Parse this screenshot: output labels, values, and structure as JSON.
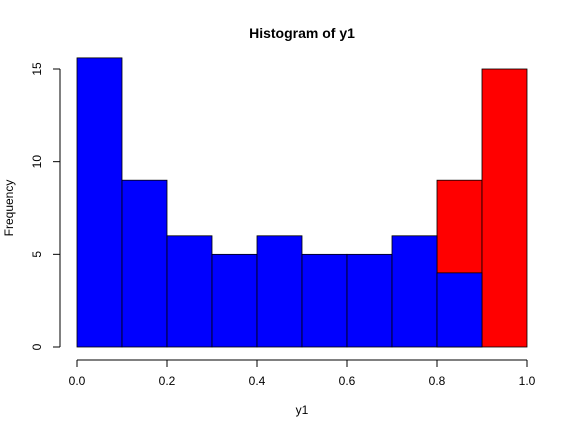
{
  "chart_data": {
    "type": "bar",
    "title": "Histogram of y1",
    "xlabel": "y1",
    "ylabel": "Frequency",
    "xlim": [
      0,
      1
    ],
    "ylim": [
      0,
      15
    ],
    "x_ticks": [
      "0.0",
      "0.2",
      "0.4",
      "0.6",
      "0.8",
      "1.0"
    ],
    "y_ticks": [
      "0",
      "5",
      "10",
      "15"
    ],
    "grid": false,
    "bin_edges": [
      0,
      0.1,
      0.2,
      0.3,
      0.4,
      0.5,
      0.6,
      0.7,
      0.8,
      0.9,
      1.0
    ],
    "layers": [
      {
        "color": "#ff0000",
        "values": [
          0,
          0,
          0,
          0,
          0,
          0,
          0,
          0,
          9,
          15
        ]
      },
      {
        "color": "#0000ff",
        "values": [
          15.6,
          9,
          6,
          5,
          6,
          5,
          5,
          6,
          4,
          0
        ]
      }
    ]
  }
}
